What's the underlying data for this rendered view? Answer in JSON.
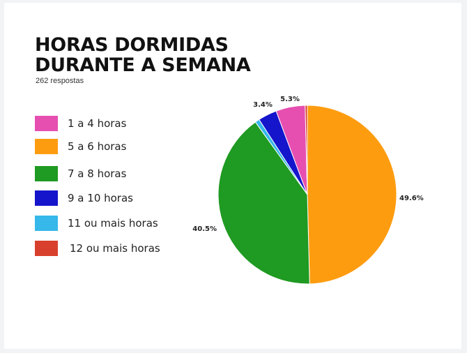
{
  "chart_data": {
    "type": "pie",
    "title_line1": "HORAS DORMIDAS",
    "title_line2": "DURANTE A SEMANA",
    "subtitle": "262 respostas",
    "slices": [
      {
        "label": "1 a 4 horas",
        "value": 5.3,
        "color": "#e64fb0",
        "value_label": "5.3%"
      },
      {
        "label": "5 a 6 horas",
        "value": 49.6,
        "color": "#fe9c10",
        "value_label": "49.6%"
      },
      {
        "label": "7 a 8 horas",
        "value": 40.5,
        "color": "#1f9a22",
        "value_label": "40.5%"
      },
      {
        "label": "9 a 10 horas",
        "value": 3.4,
        "color": "#1515cc",
        "value_label": "3.4%"
      },
      {
        "label": "11 ou mais horas",
        "value": 0.8,
        "color": "#36b8ea",
        "value_label": ""
      },
      {
        "label": "12 ou mais horas",
        "value": 0.4,
        "color": "#d8402d",
        "value_label": ""
      }
    ],
    "slice_order_clockwise": [
      1,
      2,
      4,
      3,
      0,
      5
    ],
    "legend_placement": "left"
  }
}
